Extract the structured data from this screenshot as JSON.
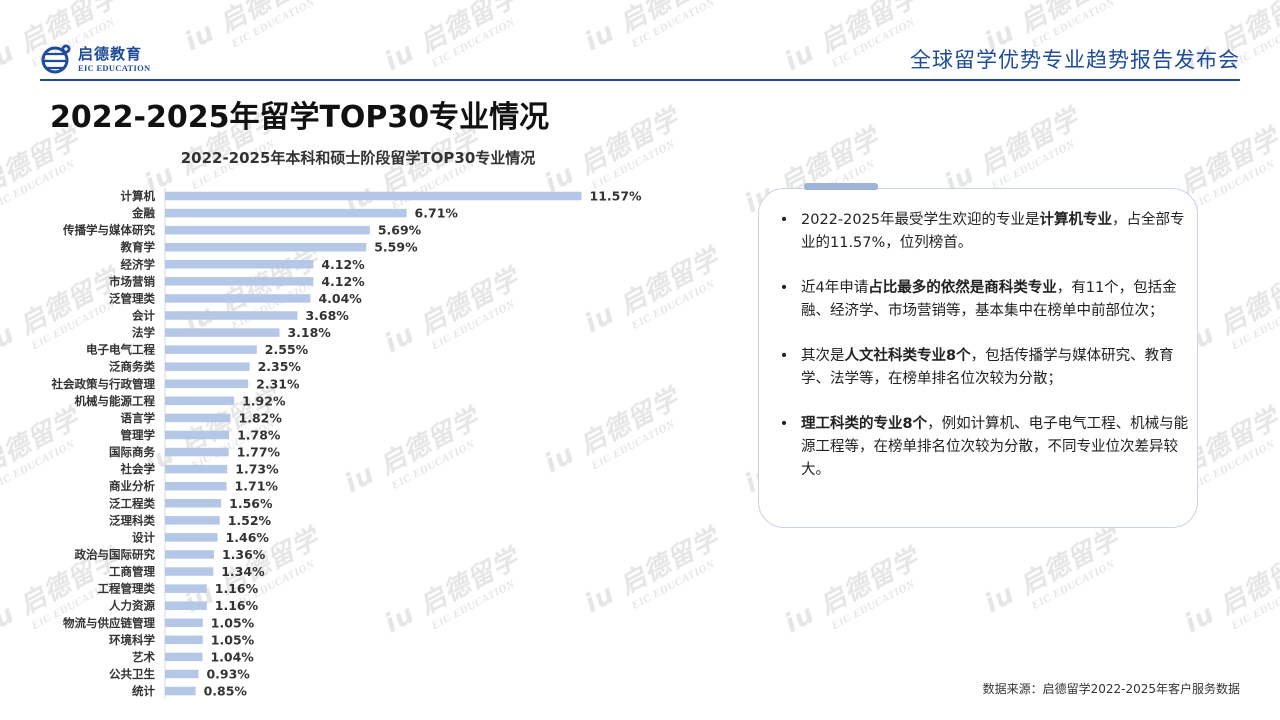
{
  "header": {
    "logo_cn": "启德教育",
    "logo_en": "EIC EDUCATION",
    "report_title": "全球留学优势专业趋势报告发布会"
  },
  "page_title": "2022-2025年留学TOP30专业情况",
  "watermark": {
    "text": "启德留学",
    "sub": "EIC EDUCATION"
  },
  "chart_data": {
    "type": "bar",
    "orientation": "horizontal",
    "title": "2022-2025年本科和硕士阶段留学TOP30专业情况",
    "categories": [
      "计算机",
      "金融",
      "传播学与媒体研究",
      "教育学",
      "经济学",
      "市场营销",
      "泛管理类",
      "会计",
      "法学",
      "电子电气工程",
      "泛商务类",
      "社会政策与行政管理",
      "机械与能源工程",
      "语言学",
      "管理学",
      "国际商务",
      "社会学",
      "商业分析",
      "泛工程类",
      "泛理科类",
      "设计",
      "政治与国际研究",
      "工商管理",
      "工程管理类",
      "人力资源",
      "物流与供应链管理",
      "环境科学",
      "艺术",
      "公共卫生",
      "统计"
    ],
    "values": [
      11.57,
      6.71,
      5.69,
      5.59,
      4.12,
      4.12,
      4.04,
      3.68,
      3.18,
      2.55,
      2.35,
      2.31,
      1.92,
      1.82,
      1.78,
      1.77,
      1.73,
      1.71,
      1.56,
      1.52,
      1.46,
      1.36,
      1.34,
      1.16,
      1.16,
      1.05,
      1.05,
      1.04,
      0.93,
      0.85
    ],
    "value_labels": [
      "11.57%",
      "6.71%",
      "5.69%",
      "5.59%",
      "4.12%",
      "4.12%",
      "4.04%",
      "3.68%",
      "3.18%",
      "2.55%",
      "2.35%",
      "2.31%",
      "1.92%",
      "1.82%",
      "1.78%",
      "1.77%",
      "1.73%",
      "1.71%",
      "1.56%",
      "1.52%",
      "1.46%",
      "1.36%",
      "1.34%",
      "1.16%",
      "1.16%",
      "1.05%",
      "1.05%",
      "1.04%",
      "0.93%",
      "0.85%"
    ],
    "xlim": [
      0,
      12
    ],
    "grid": false,
    "legend": "none",
    "bar_color": "#b4c7e7"
  },
  "insights": [
    {
      "parts": [
        {
          "t": "2022-2025年最受学生欢迎的专业是"
        },
        {
          "t": "计算机专业",
          "b": true
        },
        {
          "t": "，占全部专业的11.57%，位列榜首。"
        }
      ]
    },
    {
      "parts": [
        {
          "t": "近4年申请"
        },
        {
          "t": "占比最多的依然是商科类专业",
          "b": true
        },
        {
          "t": "，有11个，包括金融、经济学、市场营销等，基本集中在榜单中前部位次；"
        }
      ]
    },
    {
      "parts": [
        {
          "t": "其次是"
        },
        {
          "t": "人文社科类专业8个",
          "b": true
        },
        {
          "t": "，包括传播学与媒体研究、教育学、法学等，在榜单排名位次较为分散；"
        }
      ]
    },
    {
      "parts": [
        {
          "t": "理工科类的专业8个",
          "b": true
        },
        {
          "t": "，例如计算机、电子电气工程、机械与能源工程等，在榜单排名位次较为分散，不同专业位次差异较大。"
        }
      ]
    }
  ],
  "footer": "数据来源：启德留学2022-2025年客户服务数据",
  "colors": {
    "brand": "#1e4c9a",
    "bar": "#b4c7e7",
    "card_border": "#c7d3e6",
    "card_accent": "#9db3d8"
  }
}
